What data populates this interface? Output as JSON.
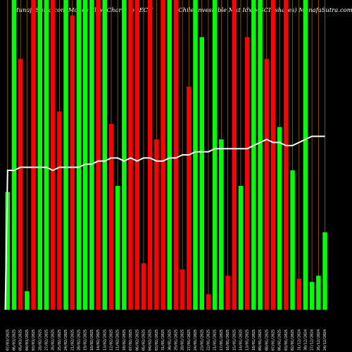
{
  "header": {
    "left": "MunafaSutra.com Money Flow Charts for ECH",
    "right": "(Chile  Investable  Mkt Idx MSCI Ishares) MunafaSutra.com"
  },
  "colors": {
    "background": "#000000",
    "up": "#00ff00",
    "down": "#ff0000",
    "grid": "#a0620a",
    "line": "#ffffff",
    "text": "#ffffff"
  },
  "chart_data": {
    "type": "bar",
    "title": "MunafaSutra.com Money Flow Charts for ECH",
    "subtitle": "(Chile  Investable  Mkt Idx MSCI Ishares) MunafaSutra.com",
    "ylim": [
      0,
      100
    ],
    "categories": [
      "07/03/2025",
      "06/03/2025",
      "05/03/2025",
      "04/03/2025",
      "03/03/2025",
      "28/02/2025",
      "27/02/2025",
      "26/02/2025",
      "25/02/2025",
      "24/02/2025",
      "21/02/2025",
      "20/02/2025",
      "19/02/2025",
      "18/02/2025",
      "14/02/2025",
      "13/02/2025",
      "12/02/2025",
      "11/02/2025",
      "10/02/2025",
      "07/02/2025",
      "06/02/2025",
      "05/02/2025",
      "04/02/2025",
      "03/02/2025",
      "31/01/2025",
      "30/01/2025",
      "29/01/2025",
      "28/01/2025",
      "27/01/2025",
      "24/01/2025",
      "23/01/2025",
      "22/01/2025",
      "21/01/2025",
      "17/01/2025",
      "16/01/2025",
      "15/01/2025",
      "14/01/2025",
      "13/01/2025",
      "10/01/2025",
      "09/01/2025",
      "08/01/2025",
      "07/01/2025",
      "06/01/2025",
      "03/01/2025",
      "02/01/2025",
      "31/12/2024",
      "30/12/2024",
      "27/12/2024",
      "26/12/2024",
      "24/12/2024"
    ],
    "direction": [
      "up",
      "up",
      "down",
      "up",
      "down",
      "up",
      "up",
      "down",
      "down",
      "up",
      "down",
      "up",
      "up",
      "up",
      "down",
      "up",
      "down",
      "up",
      "up",
      "down",
      "down",
      "down",
      "down",
      "down",
      "down",
      "up",
      "down",
      "down",
      "down",
      "up",
      "up",
      "down",
      "up",
      "up",
      "down",
      "down",
      "up",
      "down",
      "up",
      "up",
      "down",
      "down",
      "up",
      "down",
      "up",
      "down",
      "up",
      "up",
      "up",
      "up"
    ],
    "values": [
      38,
      100,
      81,
      6,
      100,
      100,
      100,
      100,
      64,
      100,
      95,
      100,
      100,
      100,
      100,
      100,
      60,
      40,
      100,
      100,
      100,
      15,
      100,
      55,
      100,
      100,
      100,
      13,
      72,
      100,
      88,
      5,
      100,
      55,
      11,
      100,
      40,
      88,
      100,
      100,
      81,
      100,
      59,
      100,
      45,
      10,
      100,
      9,
      11,
      25
    ],
    "line": [
      45,
      45,
      46,
      46,
      46,
      46,
      46,
      45,
      46,
      46,
      46,
      46,
      47,
      47,
      48,
      48,
      49,
      49,
      48,
      49,
      48,
      49,
      49,
      48,
      48,
      49,
      49,
      50,
      50,
      51,
      51,
      51,
      52,
      52,
      52,
      52,
      52,
      52,
      53,
      54,
      55,
      54,
      54,
      53,
      53,
      54,
      55,
      56,
      56,
      56
    ]
  }
}
